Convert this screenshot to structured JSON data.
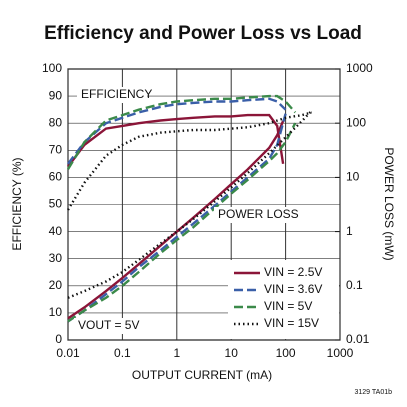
{
  "chart_data": {
    "type": "line",
    "title": "Efficiency and Power Loss vs Load",
    "xlabel": "OUTPUT CURRENT (mA)",
    "ylabel": "EFFICIENCY (%)",
    "y2label": "POWER LOSS (mW)",
    "annotations": [
      "EFFICIENCY",
      "POWER LOSS",
      "VOUT = 5V"
    ],
    "footnote": "3129 TA01b",
    "x_log": true,
    "y2_log": true,
    "grid": true,
    "legend": "lower right",
    "xlim": [
      0.01,
      1000
    ],
    "xticks": [
      0.01,
      0.1,
      1,
      10,
      100,
      1000
    ],
    "ylim": [
      0,
      100
    ],
    "yticks": [
      0,
      10,
      20,
      30,
      40,
      50,
      60,
      70,
      80,
      90,
      100
    ],
    "y2lim": [
      0.01,
      1000
    ],
    "y2ticks": [
      0.01,
      0.1,
      1,
      10,
      100,
      1000
    ],
    "series": [
      {
        "name": "VIN = 2.5V",
        "color": "#8b1538",
        "dash": "solid",
        "x": [
          0.01,
          0.02,
          0.05,
          0.1,
          0.2,
          0.5,
          1,
          2,
          5,
          10,
          20,
          50,
          70,
          90
        ],
        "values": [
          64,
          72,
          78,
          79,
          80,
          81,
          81.5,
          82,
          82.5,
          82.5,
          83,
          83,
          79,
          65
        ],
        "y2_values": [
          0.025,
          0.04,
          0.08,
          0.14,
          0.25,
          0.55,
          1,
          1.8,
          4,
          7.5,
          14,
          35,
          60,
          110
        ]
      },
      {
        "name": "VIN = 3.6V",
        "color": "#3a5fa8",
        "dash": "dash",
        "x": [
          0.01,
          0.02,
          0.05,
          0.1,
          0.2,
          0.5,
          1,
          2,
          5,
          10,
          20,
          50,
          70,
          100
        ],
        "values": [
          65,
          73,
          80,
          82,
          84,
          86,
          87,
          87.5,
          88,
          88,
          88.5,
          89,
          88,
          85
        ],
        "y2_values": [
          0.022,
          0.035,
          0.07,
          0.12,
          0.22,
          0.45,
          0.8,
          1.4,
          3,
          5.5,
          10,
          22,
          40,
          150
        ]
      },
      {
        "name": "VIN = 5V",
        "color": "#3b8a4a",
        "dash": "dash",
        "x": [
          0.01,
          0.02,
          0.05,
          0.1,
          0.2,
          0.5,
          1,
          2,
          5,
          10,
          20,
          50,
          70,
          100,
          150
        ],
        "values": [
          63,
          73,
          81,
          83,
          85,
          87,
          88,
          88.5,
          89,
          89,
          89.5,
          90,
          90,
          88,
          84
        ],
        "y2_values": [
          0.022,
          0.035,
          0.06,
          0.1,
          0.18,
          0.4,
          0.7,
          1.2,
          2.7,
          5,
          9,
          20,
          28,
          45,
          100
        ]
      },
      {
        "name": "VIN = 15V",
        "color": "#111111",
        "dash": "dot",
        "x": [
          0.01,
          0.02,
          0.05,
          0.1,
          0.2,
          0.5,
          1,
          2,
          5,
          10,
          20,
          50,
          100,
          200,
          300
        ],
        "values": [
          48,
          58,
          68,
          72,
          75,
          76.5,
          77,
          77.5,
          77.5,
          78,
          78.5,
          80,
          82,
          83,
          84
        ],
        "y2_values": [
          0.06,
          0.08,
          0.12,
          0.18,
          0.3,
          0.6,
          1,
          1.7,
          3.6,
          6.5,
          12,
          28,
          55,
          110,
          170
        ]
      }
    ]
  }
}
